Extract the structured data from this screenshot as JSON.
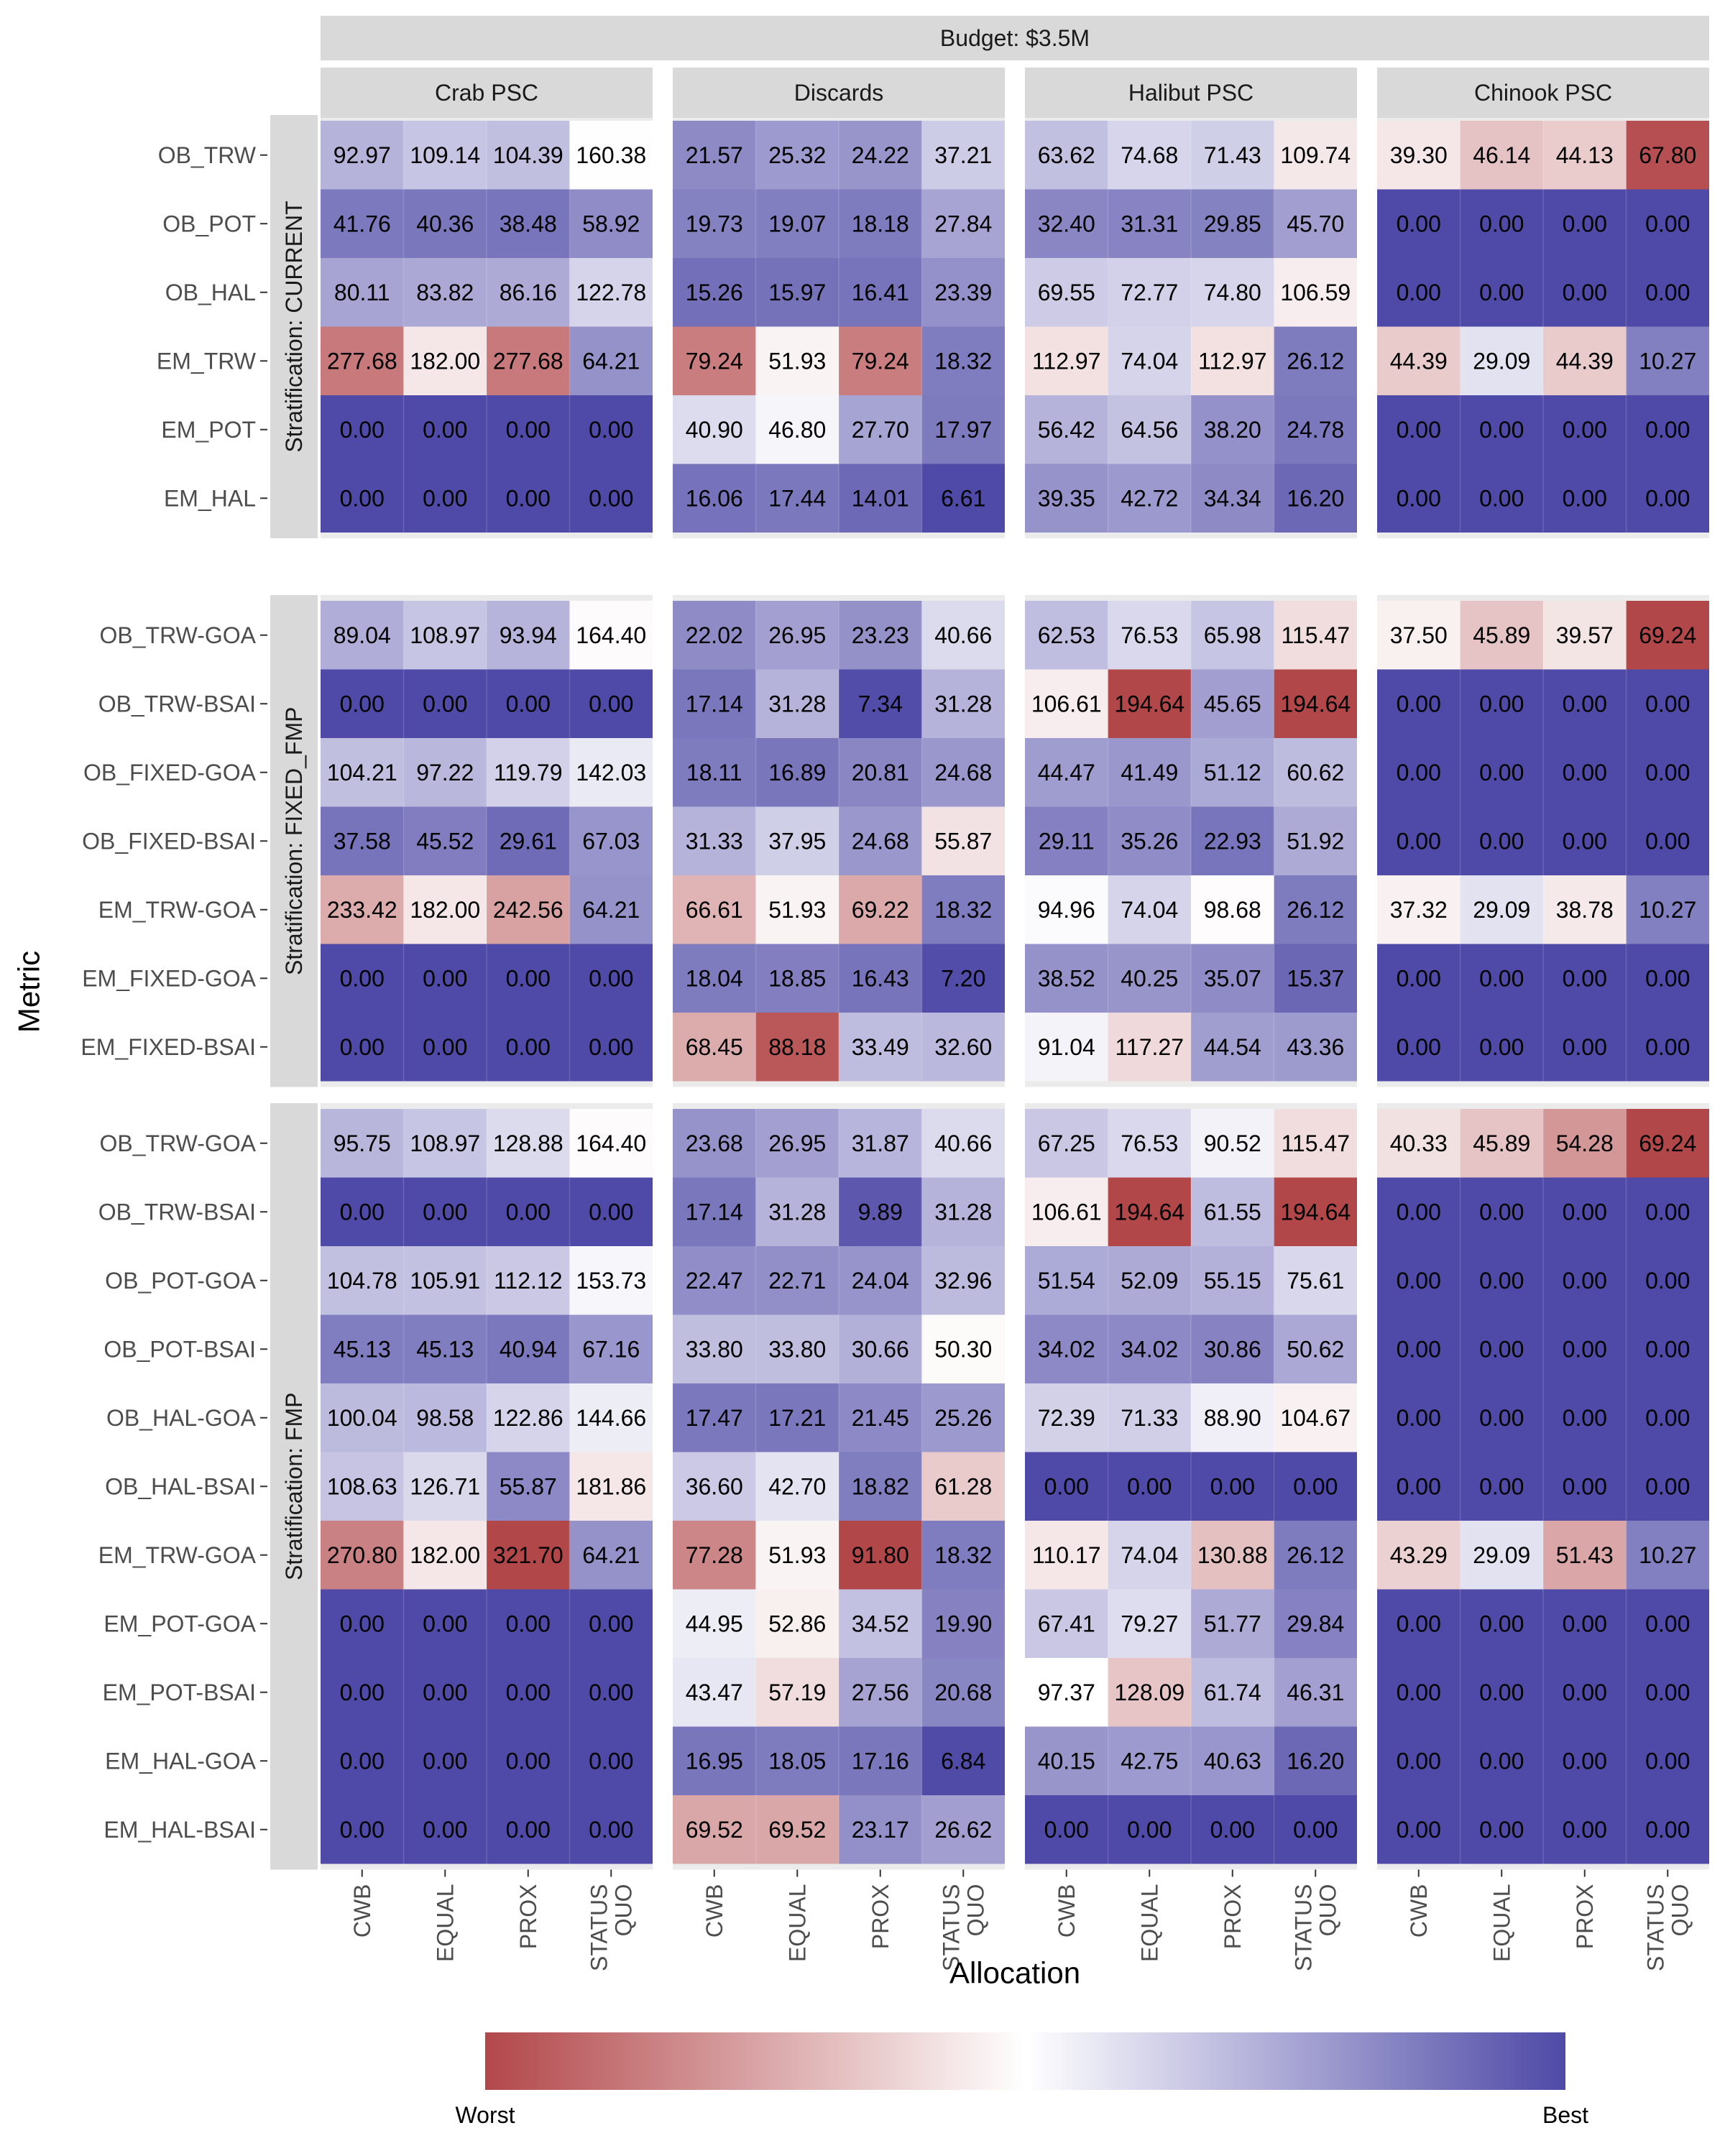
{
  "chart_data": {
    "type": "heatmap",
    "title": "Budget:  $3.5M",
    "xlabel": "Allocation",
    "ylabel": "Metric",
    "x_categories": [
      "CWB",
      "EQUAL",
      "PROX",
      "STATUS\nQUO"
    ],
    "columns": [
      "Crab PSC",
      "Discards",
      "Halibut PSC",
      "Chinook PSC"
    ],
    "legend": {
      "low_label": "Worst",
      "high_label": "Best",
      "position": "bottom"
    },
    "colors": {
      "worst": "#b2474a",
      "mid": "#ffffff",
      "best": "#4f4aa7",
      "strip_bg": "#d9d9d9",
      "panel_bg": "#ebebeb"
    },
    "strata": [
      {
        "label": "Stratification:  CURRENT",
        "metrics": [
          "OB_TRW",
          "OB_POT",
          "OB_HAL",
          "EM_TRW",
          "EM_POT",
          "EM_HAL"
        ],
        "values": [
          [
            [
              92.97,
              109.14,
              104.39,
              160.38
            ],
            [
              21.57,
              25.32,
              24.22,
              37.21
            ],
            [
              63.62,
              74.68,
              71.43,
              109.74
            ],
            [
              39.3,
              46.14,
              44.13,
              67.8
            ]
          ],
          [
            [
              41.76,
              40.36,
              38.48,
              58.92
            ],
            [
              19.73,
              19.07,
              18.18,
              27.84
            ],
            [
              32.4,
              31.31,
              29.85,
              45.7
            ],
            [
              0,
              0,
              0,
              0
            ]
          ],
          [
            [
              80.11,
              83.82,
              86.16,
              122.78
            ],
            [
              15.26,
              15.97,
              16.41,
              23.39
            ],
            [
              69.55,
              72.77,
              74.8,
              106.59
            ],
            [
              0,
              0,
              0,
              0
            ]
          ],
          [
            [
              277.68,
              182.0,
              277.68,
              64.21
            ],
            [
              79.24,
              51.93,
              79.24,
              18.32
            ],
            [
              112.97,
              74.04,
              112.97,
              26.12
            ],
            [
              44.39,
              29.09,
              44.39,
              10.27
            ]
          ],
          [
            [
              0,
              0,
              0,
              0
            ],
            [
              40.9,
              46.8,
              27.7,
              17.97
            ],
            [
              56.42,
              64.56,
              38.2,
              24.78
            ],
            [
              0,
              0,
              0,
              0
            ]
          ],
          [
            [
              0,
              0,
              0,
              0
            ],
            [
              16.06,
              17.44,
              14.01,
              6.61
            ],
            [
              39.35,
              42.72,
              34.34,
              16.2
            ],
            [
              0,
              0,
              0,
              0
            ]
          ]
        ]
      },
      {
        "label": "Stratification:  FIXED_FMP",
        "metrics": [
          "OB_TRW-GOA",
          "OB_TRW-BSAI",
          "OB_FIXED-GOA",
          "OB_FIXED-BSAI",
          "EM_TRW-GOA",
          "EM_FIXED-GOA",
          "EM_FIXED-BSAI"
        ],
        "values": [
          [
            [
              89.04,
              108.97,
              93.94,
              164.4
            ],
            [
              22.02,
              26.95,
              23.23,
              40.66
            ],
            [
              62.53,
              76.53,
              65.98,
              115.47
            ],
            [
              37.5,
              45.89,
              39.57,
              69.24
            ]
          ],
          [
            [
              0,
              0,
              0,
              0
            ],
            [
              17.14,
              31.28,
              7.34,
              31.28
            ],
            [
              106.61,
              194.64,
              45.65,
              194.64
            ],
            [
              0,
              0,
              0,
              0
            ]
          ],
          [
            [
              104.21,
              97.22,
              119.79,
              142.03
            ],
            [
              18.11,
              16.89,
              20.81,
              24.68
            ],
            [
              44.47,
              41.49,
              51.12,
              60.62
            ],
            [
              0,
              0,
              0,
              0
            ]
          ],
          [
            [
              37.58,
              45.52,
              29.61,
              67.03
            ],
            [
              31.33,
              37.95,
              24.68,
              55.87
            ],
            [
              29.11,
              35.26,
              22.93,
              51.92
            ],
            [
              0,
              0,
              0,
              0
            ]
          ],
          [
            [
              233.42,
              182.0,
              242.56,
              64.21
            ],
            [
              66.61,
              51.93,
              69.22,
              18.32
            ],
            [
              94.96,
              74.04,
              98.68,
              26.12
            ],
            [
              37.32,
              29.09,
              38.78,
              10.27
            ]
          ],
          [
            [
              0,
              0,
              0,
              0
            ],
            [
              18.04,
              18.85,
              16.43,
              7.2
            ],
            [
              38.52,
              40.25,
              35.07,
              15.37
            ],
            [
              0,
              0,
              0,
              0
            ]
          ],
          [
            [
              0,
              0,
              0,
              0
            ],
            [
              68.45,
              88.18,
              33.49,
              32.6
            ],
            [
              91.04,
              117.27,
              44.54,
              43.36
            ],
            [
              0,
              0,
              0,
              0
            ]
          ]
        ]
      },
      {
        "label": "Stratification:  FMP",
        "metrics": [
          "OB_TRW-GOA",
          "OB_TRW-BSAI",
          "OB_POT-GOA",
          "OB_POT-BSAI",
          "OB_HAL-GOA",
          "OB_HAL-BSAI",
          "EM_TRW-GOA",
          "EM_POT-GOA",
          "EM_POT-BSAI",
          "EM_HAL-GOA",
          "EM_HAL-BSAI"
        ],
        "values": [
          [
            [
              95.75,
              108.97,
              128.88,
              164.4
            ],
            [
              23.68,
              26.95,
              31.87,
              40.66
            ],
            [
              67.25,
              76.53,
              90.52,
              115.47
            ],
            [
              40.33,
              45.89,
              54.28,
              69.24
            ]
          ],
          [
            [
              0,
              0,
              0,
              0
            ],
            [
              17.14,
              31.28,
              9.89,
              31.28
            ],
            [
              106.61,
              194.64,
              61.55,
              194.64
            ],
            [
              0,
              0,
              0,
              0
            ]
          ],
          [
            [
              104.78,
              105.91,
              112.12,
              153.73
            ],
            [
              22.47,
              22.71,
              24.04,
              32.96
            ],
            [
              51.54,
              52.09,
              55.15,
              75.61
            ],
            [
              0,
              0,
              0,
              0
            ]
          ],
          [
            [
              45.13,
              45.13,
              40.94,
              67.16
            ],
            [
              33.8,
              33.8,
              30.66,
              50.3
            ],
            [
              34.02,
              34.02,
              30.86,
              50.62
            ],
            [
              0,
              0,
              0,
              0
            ]
          ],
          [
            [
              100.04,
              98.58,
              122.86,
              144.66
            ],
            [
              17.47,
              17.21,
              21.45,
              25.26
            ],
            [
              72.39,
              71.33,
              88.9,
              104.67
            ],
            [
              0,
              0,
              0,
              0
            ]
          ],
          [
            [
              108.63,
              126.71,
              55.87,
              181.86
            ],
            [
              36.6,
              42.7,
              18.82,
              61.28
            ],
            [
              0,
              0,
              0,
              0
            ],
            [
              0,
              0,
              0,
              0
            ]
          ],
          [
            [
              270.8,
              182.0,
              321.7,
              64.21
            ],
            [
              77.28,
              51.93,
              91.8,
              18.32
            ],
            [
              110.17,
              74.04,
              130.88,
              26.12
            ],
            [
              43.29,
              29.09,
              51.43,
              10.27
            ]
          ],
          [
            [
              0,
              0,
              0,
              0
            ],
            [
              44.95,
              52.86,
              34.52,
              19.9
            ],
            [
              67.41,
              79.27,
              51.77,
              29.84
            ],
            [
              0,
              0,
              0,
              0
            ]
          ],
          [
            [
              0,
              0,
              0,
              0
            ],
            [
              43.47,
              57.19,
              27.56,
              20.68
            ],
            [
              97.37,
              128.09,
              61.74,
              46.31
            ],
            [
              0,
              0,
              0,
              0
            ]
          ],
          [
            [
              0,
              0,
              0,
              0
            ],
            [
              16.95,
              18.05,
              17.16,
              6.84
            ],
            [
              40.15,
              42.75,
              40.63,
              16.2
            ],
            [
              0,
              0,
              0,
              0
            ]
          ],
          [
            [
              0,
              0,
              0,
              0
            ],
            [
              69.52,
              69.52,
              23.17,
              26.62
            ],
            [
              0,
              0,
              0,
              0
            ],
            [
              0,
              0,
              0,
              0
            ]
          ]
        ]
      }
    ]
  }
}
